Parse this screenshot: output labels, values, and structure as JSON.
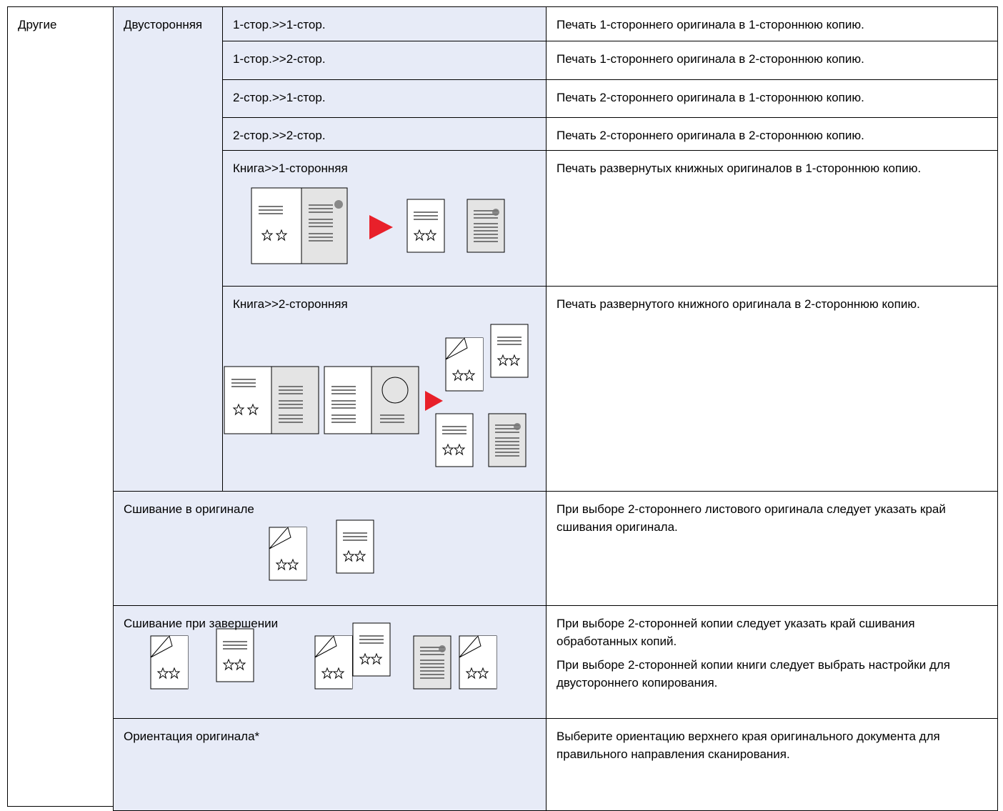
{
  "table": {
    "group": "Другие",
    "section": "Двусторонняя",
    "rows": [
      {
        "setting": "1-стор.>>1-стор.",
        "description": [
          "Печать 1-стороннего оригинала в 1-стороннюю копию."
        ]
      },
      {
        "setting": "1-стор.>>2-стор.",
        "description": [
          "Печать 1-стороннего оригинала в 2-стороннюю копию."
        ]
      },
      {
        "setting": "2-стор.>>1-стор.",
        "description": [
          "Печать 2-стороннего оригинала в 1-стороннюю копию."
        ]
      },
      {
        "setting": "2-стор.>>2-стор.",
        "description": [
          "Печать 2-стороннего оригинала в 2-стороннюю копию."
        ]
      },
      {
        "setting": "Книга>>1-сторонняя",
        "description": [
          "Печать развернутых книжных оригиналов в 1-стороннюю копию."
        ]
      },
      {
        "setting": "Книга>>2-сторонняя",
        "description": [
          "Печать развернутого книжного оригинала в 2-стороннюю копию."
        ]
      },
      {
        "setting": "Сшивание в оригинале",
        "description": [
          "При выборе 2-стороннего листового оригинала следует указать край сшивания оригинала."
        ]
      },
      {
        "setting": "Сшивание при завершении",
        "description": [
          "При выборе 2-сторонней копии следует указать край сшивания обработанных копий.",
          "При выборе 2-сторонней копии книги следует выбрать настройки для двустороннего копирования."
        ]
      },
      {
        "setting": "Ориентация оригинала*",
        "description": [
          "Выберите ориентацию верхнего края оригинального документа для правильного направления сканирования."
        ]
      }
    ]
  }
}
